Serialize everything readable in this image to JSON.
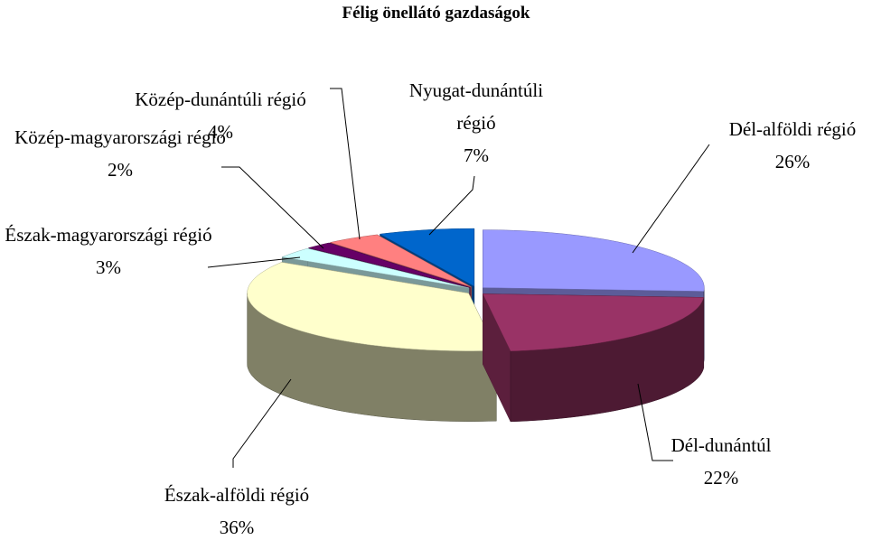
{
  "chart_data": {
    "type": "pie3d",
    "title": "Félig önellátó gazdaságok",
    "categories": [
      "Dél-alföldi régió",
      "Dél-dunántúl",
      "Észak-alföldi régió",
      "Észak-magyarországi régió",
      "Közép-magyarországi régió",
      "Közép-dunántúli régió",
      "Nyugat-dunántúli régió"
    ],
    "values": [
      26,
      22,
      36,
      3,
      2,
      4,
      7
    ],
    "value_labels": [
      "26%",
      "22%",
      "36%",
      "3%",
      "2%",
      "4%",
      "7%"
    ],
    "colors": [
      "#9999ff",
      "#993366",
      "#ffffcc",
      "#ccffff",
      "#660066",
      "#ff8080",
      "#0066cc"
    ]
  }
}
